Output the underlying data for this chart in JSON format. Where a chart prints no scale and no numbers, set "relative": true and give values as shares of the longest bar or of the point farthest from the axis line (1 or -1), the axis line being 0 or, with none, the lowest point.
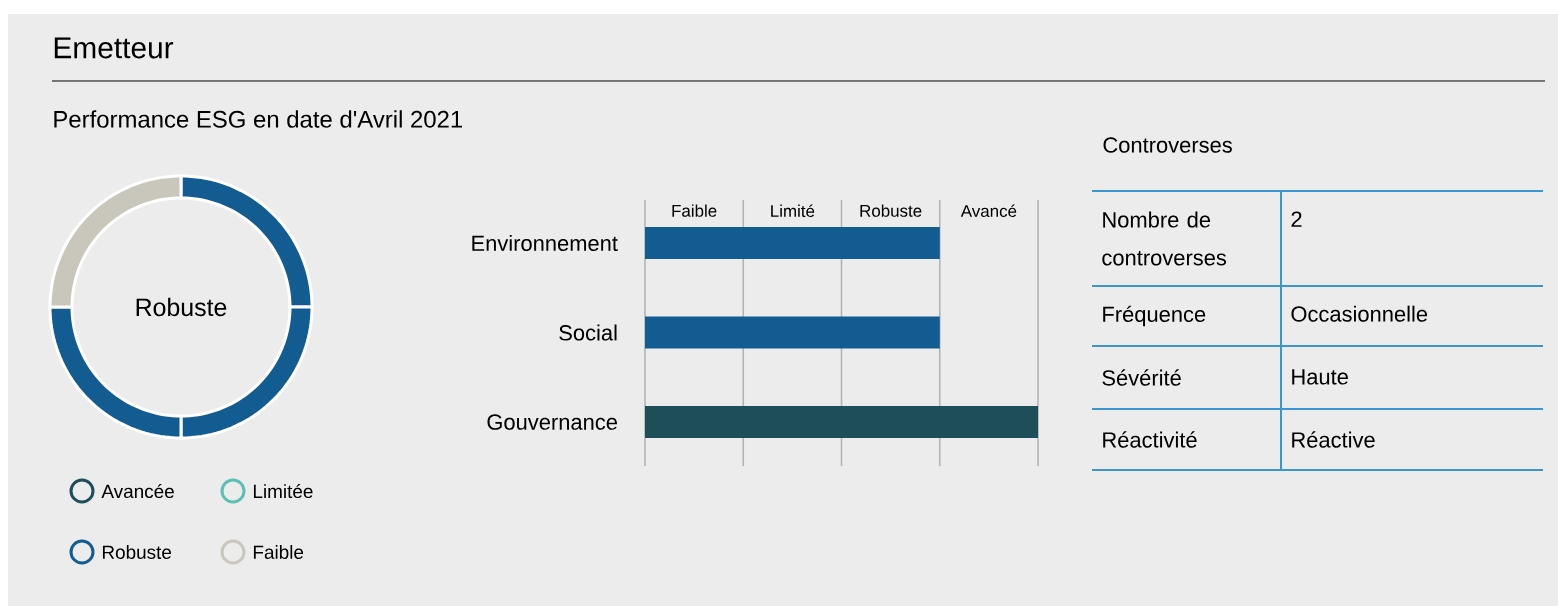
{
  "chart_data": [
    {
      "type": "donut",
      "title": "Emetteur",
      "subtitle": "Performance ESG en date d'Avril 2021",
      "categories": [
        null,
        null,
        null,
        null
      ],
      "values": [
        25,
        25,
        25,
        25
      ],
      "colors": [
        "#135c92",
        "#135c92",
        "#135c92",
        "#c9c7bb"
      ],
      "annotations": [
        "Robuste"
      ]
    },
    {
      "type": "other",
      "categories": [
        "Avancée",
        "Limitée",
        "Robuste",
        "Faible"
      ],
      "colors": [
        "#1d4e5a",
        "#5bbfb5",
        "#135c92",
        "#c9c7bb"
      ]
    },
    {
      "type": "bar",
      "orientation": "horizontal",
      "relative": true,
      "categories": [
        "Environnement",
        "Social",
        "Gouvernance"
      ],
      "values": [
        0.75,
        0.75,
        1
      ],
      "colors": [
        "#135c92",
        "#135c92",
        "#1d4e5a"
      ],
      "annotations": [
        "Faible",
        "Limité",
        "Robuste",
        "Avancé"
      ],
      "grid": "x"
    },
    {
      "type": "other",
      "title": "Controverses",
      "categories": [
        "Nombre de controverses",
        "Fréquence",
        "Sévérité",
        "Réactivité"
      ],
      "value_labels": [
        "2",
        "Occasionnelle",
        "Haute",
        "Réactive"
      ]
    }
  ]
}
